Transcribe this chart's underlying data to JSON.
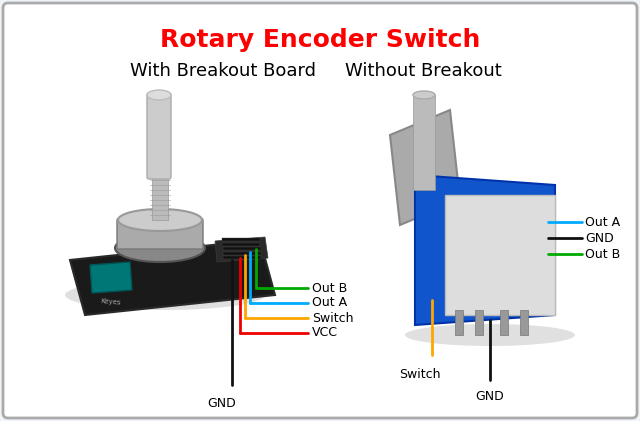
{
  "title": "Rotary Encoder Switch",
  "title_color": "#FF0000",
  "title_fontsize": 18,
  "bg_color": "#F0F4F8",
  "border_color": "#AAAAAA",
  "border_lw": 2,
  "left_heading": "With Breakout Board",
  "right_heading": "Without Breakout",
  "heading_fontsize": 13,
  "label_fontsize": 9,
  "left_wires": [
    {
      "label": "Out B",
      "color": "#00AA00"
    },
    {
      "label": "Out A",
      "color": "#00AAFF"
    },
    {
      "label": "Switch",
      "color": "#FFA500"
    },
    {
      "label": "VCC",
      "color": "#EE0000"
    },
    {
      "label": "GND",
      "color": "#111111"
    }
  ],
  "right_wires_h": [
    {
      "label": "Out A",
      "color": "#00AAFF"
    },
    {
      "label": "GND",
      "color": "#111111"
    },
    {
      "label": "Out B",
      "color": "#00AA00"
    }
  ],
  "figsize": [
    6.4,
    4.21
  ],
  "dpi": 100
}
